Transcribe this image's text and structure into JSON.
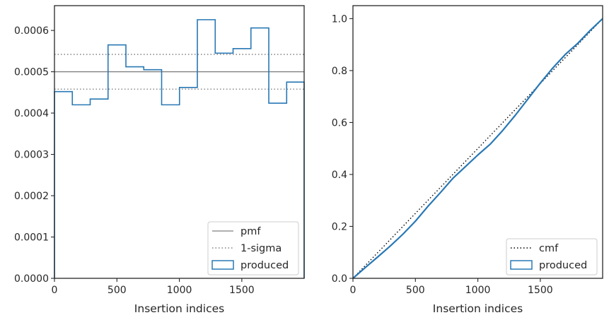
{
  "chart_data": [
    {
      "type": "step-histogram",
      "xlabel": "Insertion indices",
      "ylabel": "",
      "xlim": [
        0,
        1999
      ],
      "ylim": [
        0,
        0.00066
      ],
      "xticks": [
        0,
        500,
        1000,
        1500
      ],
      "yticks": [
        0.0,
        0.0001,
        0.0002,
        0.0003,
        0.0004,
        0.0005,
        0.0006
      ],
      "ytick_labels": [
        "0.0000",
        "0.0001",
        "0.0002",
        "0.0003",
        "0.0004",
        "0.0005",
        "0.0006"
      ],
      "grid": false,
      "legend": "lower-right",
      "reference_lines": {
        "pmf": 0.0005,
        "sigma_upper": 0.000542,
        "sigma_lower": 0.000458
      },
      "bins": [
        0,
        143,
        286,
        429,
        572,
        715,
        858,
        1001,
        1144,
        1287,
        1430,
        1573,
        1716,
        1859,
        1999
      ],
      "values": [
        0.000452,
        0.00042,
        0.000434,
        0.000565,
        0.000512,
        0.000505,
        0.00042,
        0.000462,
        0.000626,
        0.000545,
        0.000556,
        0.000606,
        0.000424,
        0.000475
      ],
      "series": [
        {
          "name": "pmf",
          "color": "#808080",
          "style": "solid"
        },
        {
          "name": "1-sigma",
          "color": "#808080",
          "style": "dotted"
        },
        {
          "name": "produced",
          "color": "#2878b5",
          "style": "step"
        }
      ]
    },
    {
      "type": "line",
      "xlabel": "Insertion indices",
      "ylabel": "",
      "xlim": [
        0,
        1999
      ],
      "ylim": [
        0,
        1.05
      ],
      "xticks": [
        0,
        500,
        1000,
        1500
      ],
      "yticks": [
        0.0,
        0.2,
        0.4,
        0.6,
        0.8,
        1.0
      ],
      "ytick_labels": [
        "0.0",
        "0.2",
        "0.4",
        "0.6",
        "0.8",
        "1.0"
      ],
      "grid": false,
      "legend": "lower-right",
      "x": [
        0,
        100,
        200,
        300,
        400,
        500,
        600,
        700,
        800,
        900,
        1000,
        1100,
        1200,
        1300,
        1400,
        1500,
        1600,
        1700,
        1800,
        1900,
        1999
      ],
      "series": [
        {
          "name": "cmf",
          "color": "#000000",
          "style": "dotted",
          "values": [
            0,
            0.05,
            0.1,
            0.15,
            0.2,
            0.25,
            0.3,
            0.35,
            0.4,
            0.45,
            0.5,
            0.55,
            0.6,
            0.65,
            0.7,
            0.75,
            0.8,
            0.85,
            0.9,
            0.95,
            1.0
          ]
        },
        {
          "name": "produced",
          "color": "#2878b5",
          "style": "solid",
          "values": [
            0,
            0.042,
            0.083,
            0.125,
            0.17,
            0.22,
            0.277,
            0.33,
            0.385,
            0.43,
            0.475,
            0.517,
            0.57,
            0.628,
            0.69,
            0.752,
            0.81,
            0.862,
            0.905,
            0.955,
            1.0
          ]
        }
      ]
    }
  ]
}
